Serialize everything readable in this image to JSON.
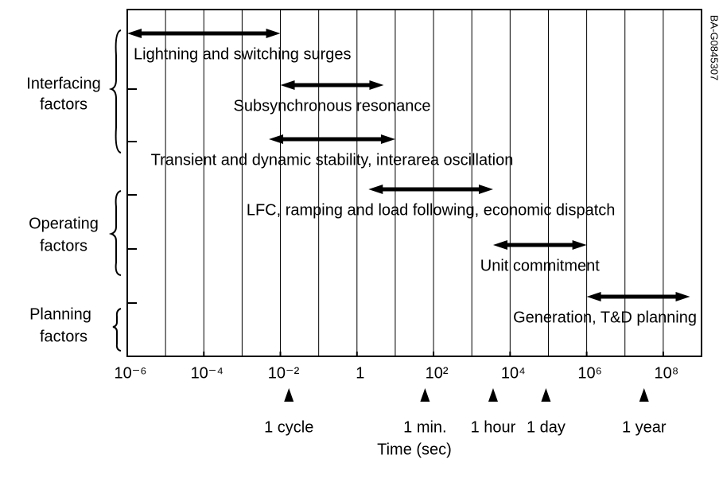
{
  "chart_data": {
    "type": "range",
    "x_label": "Time (sec)",
    "side_note": "BA-G0845307",
    "xscale": "log",
    "xlim": [
      1e-06,
      1000000000.0
    ],
    "xticks": [
      {
        "value": 1e-06,
        "label": "10⁻⁶"
      },
      {
        "value": 0.0001,
        "label": "10⁻⁴"
      },
      {
        "value": 0.01,
        "label": "10⁻²"
      },
      1,
      {
        "value": 100,
        "label": "10²"
      },
      {
        "value": 10000,
        "label": "10⁴"
      },
      {
        "value": 1000000,
        "label": "10⁶"
      },
      {
        "value": 100000000,
        "label": "10⁸"
      }
    ],
    "xgrid": [
      1e-05,
      0.0001,
      0.001,
      0.01,
      0.1,
      1,
      10,
      100,
      1000,
      10000,
      100000,
      1000000,
      10000000,
      100000000
    ],
    "color": "#000000",
    "ranges": [
      {
        "name": "Lightning and switching surges",
        "start": 1e-06,
        "end": 0.01
      },
      {
        "name": "Subsynchronous resonance",
        "start": 0.01,
        "end": 5
      },
      {
        "name": "Transient and dynamic stability, interarea oscillation",
        "start": 0.005,
        "end": 10
      },
      {
        "name": "LFC, ramping and load following, economic dispatch",
        "start": 2,
        "end": 3600
      },
      {
        "name": "Unit commitment",
        "start": 3600,
        "end": 1000000
      },
      {
        "name": "Generation, T&D planning",
        "start": 1000000,
        "end": 500000000
      }
    ],
    "markers": [
      {
        "value": 0.0166667,
        "label": "1 cycle"
      },
      {
        "value": 60,
        "label": "1 min."
      },
      {
        "value": 3600,
        "label": "1 hour"
      },
      {
        "value": 86400,
        "label": "1 day"
      },
      {
        "value": 31536000,
        "label": "1 year"
      }
    ],
    "groups": [
      {
        "lines": [
          "Interfacing",
          "factors"
        ]
      },
      {
        "lines": [
          "Operating",
          "factors"
        ]
      },
      {
        "lines": [
          "Planning",
          "factors"
        ]
      }
    ]
  }
}
